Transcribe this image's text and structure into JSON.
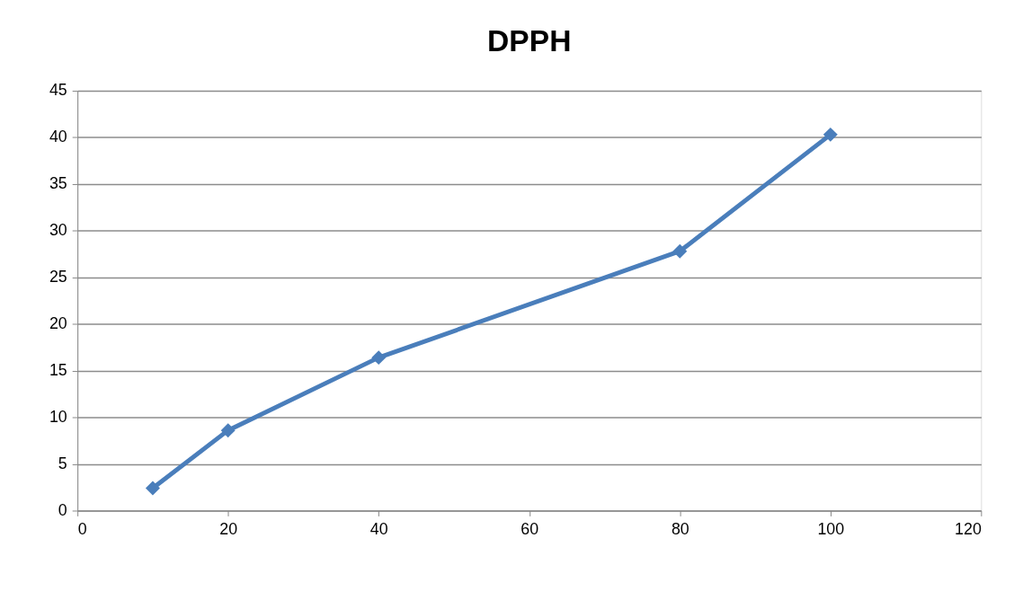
{
  "chart_data": {
    "type": "line",
    "title": "DPPH",
    "x": [
      10,
      20,
      40,
      80,
      100
    ],
    "series": [
      {
        "color": "#4a7ebb",
        "values": [
          2.4,
          8.6,
          16.4,
          27.8,
          40.3
        ]
      }
    ],
    "xlim": [
      0,
      120
    ],
    "xticks": [
      0,
      20,
      40,
      60,
      80,
      100,
      120
    ],
    "ylim": [
      0,
      45
    ],
    "yticks": [
      0,
      5,
      10,
      15,
      20,
      25,
      30,
      35,
      40,
      45
    ],
    "grid": "y",
    "marker": "diamond",
    "line_style": "solid"
  }
}
